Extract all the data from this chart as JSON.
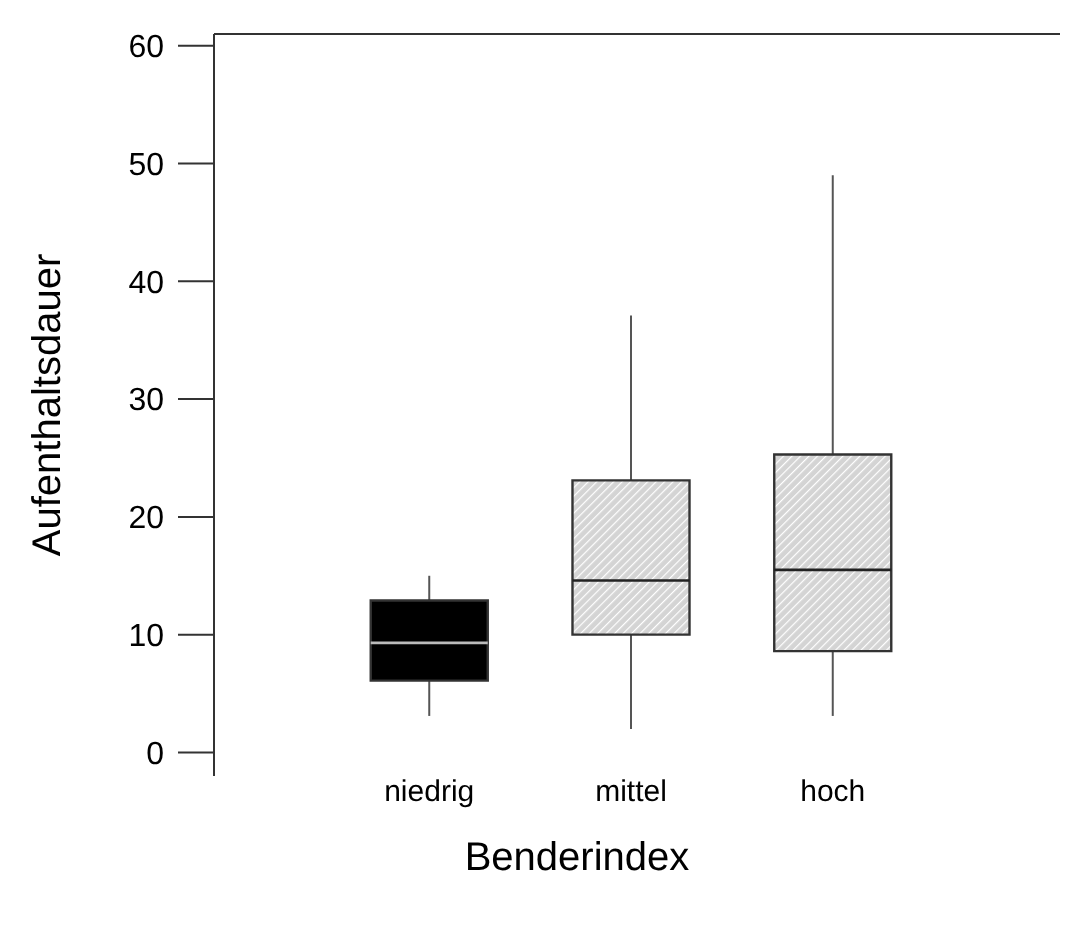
{
  "chart_data": {
    "type": "box",
    "xlabel": "Benderindex",
    "ylabel": "Aufenthaltsdauer",
    "categories": [
      "niedrig",
      "mittel",
      "hoch"
    ],
    "colors": [
      "#000000",
      "#d4d4d4",
      "#d4d4d4"
    ],
    "boxes": [
      {
        "low": 3.1,
        "q1": 6.1,
        "median": 9.3,
        "q3": 12.9,
        "high": 15
      },
      {
        "low": 2,
        "q1": 10,
        "median": 14.6,
        "q3": 23.1,
        "high": 37.1
      },
      {
        "low": 3.1,
        "q1": 8.6,
        "median": 15.5,
        "q3": 25.3,
        "high": 49
      }
    ],
    "ylim": [
      -2,
      61
    ],
    "yticks": [
      0,
      10,
      20,
      30,
      40,
      50,
      60
    ],
    "grid": false
  }
}
